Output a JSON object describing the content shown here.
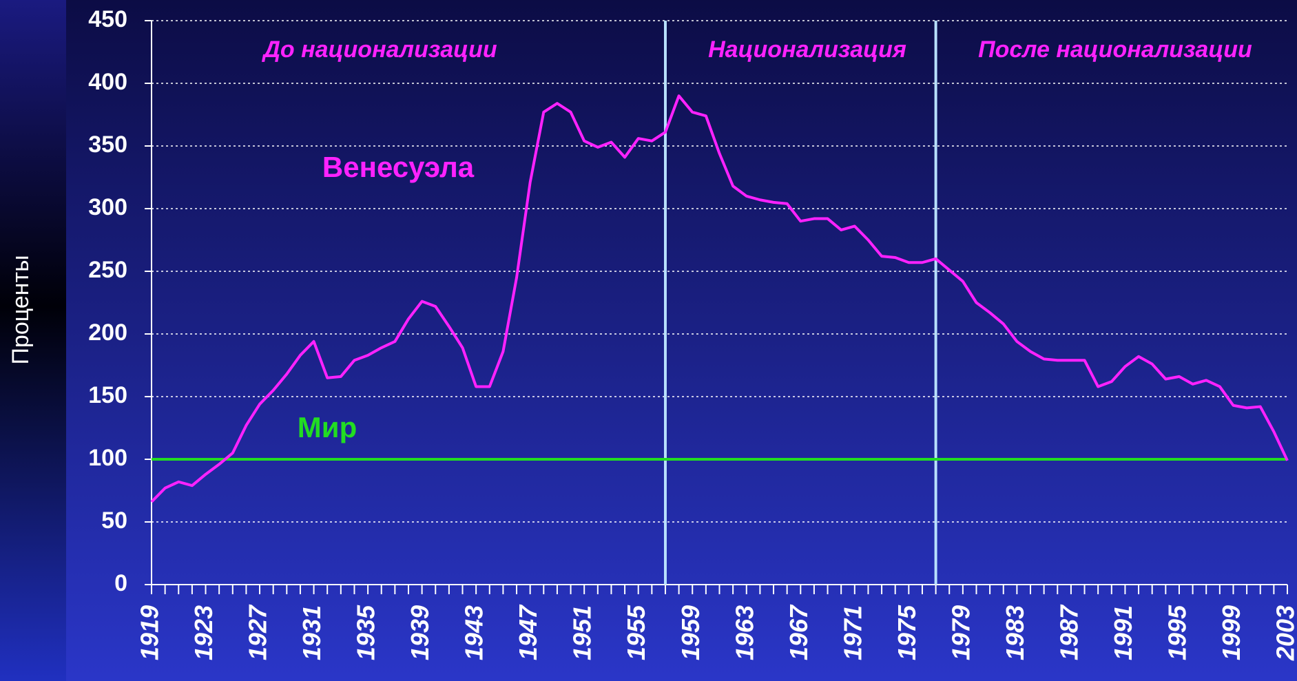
{
  "chart_data": {
    "type": "line",
    "ylabel": "Проценты",
    "annotations": [
      "До национализации",
      "Национализация",
      "После национализации"
    ],
    "x": [
      1919,
      1920,
      1921,
      1922,
      1923,
      1924,
      1925,
      1926,
      1927,
      1928,
      1929,
      1930,
      1931,
      1932,
      1933,
      1934,
      1935,
      1936,
      1937,
      1938,
      1939,
      1940,
      1941,
      1942,
      1943,
      1944,
      1945,
      1946,
      1947,
      1948,
      1949,
      1950,
      1951,
      1952,
      1953,
      1954,
      1955,
      1956,
      1957,
      1958,
      1959,
      1960,
      1961,
      1962,
      1963,
      1964,
      1965,
      1966,
      1967,
      1968,
      1969,
      1970,
      1971,
      1972,
      1973,
      1974,
      1975,
      1976,
      1977,
      1978,
      1979,
      1980,
      1981,
      1982,
      1983,
      1984,
      1985,
      1986,
      1987,
      1988,
      1989,
      1990,
      1991,
      1992,
      1993,
      1994,
      1995,
      1996,
      1997,
      1998,
      1999,
      2000,
      2001,
      2002,
      2003
    ],
    "series": [
      {
        "name": "Венесуэла",
        "color": "#ff22ff",
        "values": [
          66,
          77,
          82,
          79,
          88,
          96,
          105,
          127,
          144,
          155,
          168,
          183,
          194,
          165,
          166,
          179,
          183,
          189,
          194,
          212,
          226,
          222,
          206,
          189,
          158,
          158,
          186,
          245,
          321,
          377,
          384,
          377,
          354,
          349,
          353,
          341,
          356,
          354,
          361,
          390,
          377,
          374,
          344,
          318,
          310,
          307,
          305,
          304,
          290,
          292,
          292,
          283,
          286,
          275,
          262,
          261,
          257,
          257,
          260,
          251,
          242,
          225,
          217,
          208,
          194,
          186,
          180,
          179,
          179,
          179,
          158,
          162,
          174,
          182,
          176,
          164,
          166,
          160,
          163,
          158,
          143,
          141,
          142,
          122,
          99
        ]
      },
      {
        "name": "Мир",
        "color": "#22dd22",
        "values": [
          100,
          100,
          100,
          100,
          100,
          100,
          100,
          100,
          100,
          100,
          100,
          100,
          100,
          100,
          100,
          100,
          100,
          100,
          100,
          100,
          100,
          100,
          100,
          100,
          100,
          100,
          100,
          100,
          100,
          100,
          100,
          100,
          100,
          100,
          100,
          100,
          100,
          100,
          100,
          100,
          100,
          100,
          100,
          100,
          100,
          100,
          100,
          100,
          100,
          100,
          100,
          100,
          100,
          100,
          100,
          100,
          100,
          100,
          100,
          100,
          100,
          100,
          100,
          100,
          100,
          100,
          100,
          100,
          100,
          100,
          100,
          100,
          100,
          100,
          100,
          100,
          100,
          100,
          100,
          100,
          100,
          100,
          100,
          100,
          100
        ]
      }
    ],
    "vlines": [
      1957,
      1977
    ],
    "xlim": [
      1919,
      2003
    ],
    "xticks": [
      1919,
      1923,
      1927,
      1931,
      1935,
      1939,
      1943,
      1947,
      1951,
      1955,
      1959,
      1963,
      1967,
      1971,
      1975,
      1979,
      1983,
      1987,
      1991,
      1995,
      1999,
      2003
    ],
    "ylim": [
      0,
      450
    ],
    "yticks": [
      0,
      50,
      100,
      150,
      200,
      250,
      300,
      350,
      400,
      450
    ],
    "grid": true
  }
}
